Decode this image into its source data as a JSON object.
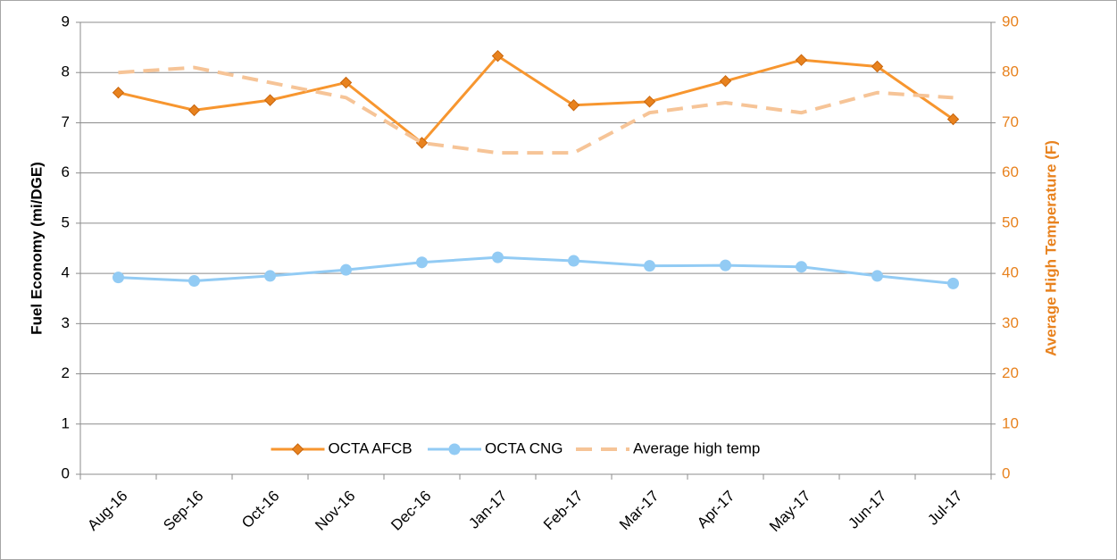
{
  "chart_data": {
    "type": "line",
    "y_label": "Fuel Economy (mi/DGE)",
    "y2_label": "Average High Temperature (F)",
    "categories": [
      "Aug-16",
      "Sep-16",
      "Oct-16",
      "Nov-16",
      "Dec-16",
      "Jan-17",
      "Feb-17",
      "Mar-17",
      "Apr-17",
      "May-17",
      "Jun-17",
      "Jul-17"
    ],
    "series": [
      {
        "name": "OCTA AFCB",
        "color": "#f7962f",
        "marker": "diamond",
        "values": [
          7.6,
          7.25,
          7.45,
          7.8,
          6.6,
          8.33,
          7.35,
          7.42,
          7.83,
          8.25,
          8.12,
          7.07
        ]
      },
      {
        "name": "OCTA CNG",
        "color": "#92cbf4",
        "marker": "circle",
        "values": [
          3.92,
          3.85,
          3.95,
          4.07,
          4.22,
          4.32,
          4.25,
          4.15,
          4.16,
          4.13,
          3.95,
          3.8
        ]
      },
      {
        "name": "Average high temp",
        "color": "#f6c497",
        "dashed": true,
        "axis": "y2",
        "values": [
          80,
          81,
          78,
          75,
          66,
          64,
          64,
          72,
          74,
          72,
          76,
          75
        ]
      }
    ],
    "ylim": [
      0,
      9
    ],
    "yticks": [
      0,
      1,
      2,
      3,
      4,
      5,
      6,
      7,
      8,
      9
    ],
    "y2lim": [
      0,
      90
    ],
    "y2ticks": [
      0,
      10,
      20,
      30,
      40,
      50,
      60,
      70,
      80,
      90
    ],
    "y2_color": "#e8821e",
    "grid": true,
    "legend": "lower center"
  }
}
